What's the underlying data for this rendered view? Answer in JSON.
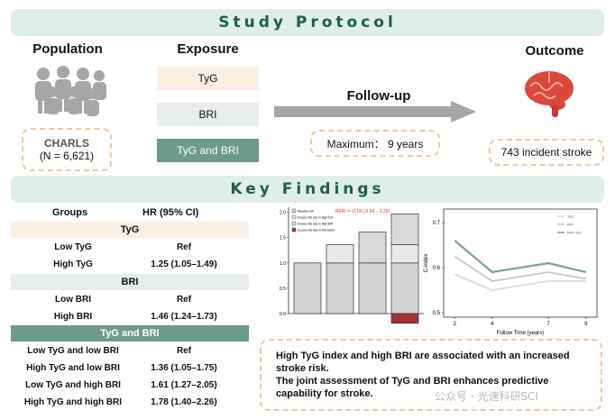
{
  "banners": {
    "protocol": "Study Protocol",
    "findings": "Key Findings"
  },
  "protocol": {
    "population": {
      "title": "Population",
      "name": "CHARLS",
      "n": "(N = 6,621)"
    },
    "exposure": {
      "title": "Exposure",
      "items": [
        "TyG",
        "BRI",
        "TyG and BRI"
      ]
    },
    "followup": {
      "title": "Follow-up",
      "maximum": "Maximum： 9 years"
    },
    "outcome": {
      "title": "Outcome",
      "result": "743 incident stroke"
    }
  },
  "table": {
    "headers": {
      "groups": "Groups",
      "hr": "HR (95% CI)"
    },
    "sections": [
      {
        "title": "TyG",
        "rows": [
          {
            "group": "Low TyG",
            "hr": "Ref"
          },
          {
            "group": "High TyG",
            "hr": "1.25 (1.05–1.49)"
          }
        ]
      },
      {
        "title": "BRI",
        "rows": [
          {
            "group": "Low BRI",
            "hr": "Ref"
          },
          {
            "group": "High BRI",
            "hr": "1.46 (1.24–1.73)"
          }
        ]
      },
      {
        "title": "TyG and BRI",
        "rows": [
          {
            "group": "Low TyG and low BRI",
            "hr": "Ref"
          },
          {
            "group": "High TyG and low BRI",
            "hr": "1.36 (1.05–1.75)"
          },
          {
            "group": "Low TyG and high BRI",
            "hr": "1.61 (1.27–2.05)"
          },
          {
            "group": "High TyG and high BRI",
            "hr": "1.78 (1.40–2.26)"
          }
        ]
      }
    ]
  },
  "chart_data": [
    {
      "type": "bar",
      "annotation": "RERI = -0.19 (-0.64 – 0.26)",
      "legend": [
        "Baseline risk",
        "Excess risk due to high TyG",
        "Excess risk due to high BRI",
        "Excess risk due to interaction"
      ],
      "yticks": [
        "0.0",
        "0.5",
        "1.0",
        "1.5",
        "2.0"
      ],
      "ylim": [
        0,
        2.1
      ],
      "bars": [
        {
          "baseline": 1.0,
          "tyg": 0,
          "bri": 0,
          "interaction": 0
        },
        {
          "baseline": 1.0,
          "tyg": 0.36,
          "bri": 0,
          "interaction": 0
        },
        {
          "baseline": 1.0,
          "tyg": 0,
          "bri": 0.61,
          "interaction": 0
        },
        {
          "baseline": 1.0,
          "tyg": 0.36,
          "bri": 0.61,
          "interaction": -0.19
        }
      ],
      "colors": {
        "baseline": "#d3d3d3",
        "tyg": "#e8e8e8",
        "bri": "#d9d9d9",
        "interaction": "#a83232"
      }
    },
    {
      "type": "line",
      "xlabel": "Follow Time (years)",
      "ylabel": "C-index",
      "x": [
        2,
        4,
        7,
        9
      ],
      "xticks": [
        "2",
        "4",
        "7",
        "9"
      ],
      "yticks": [
        "0.5",
        "0.6",
        "0.7"
      ],
      "ylim": [
        0.49,
        0.73
      ],
      "series": [
        {
          "name": "TyG",
          "values": [
            0.585,
            0.55,
            0.57,
            0.57
          ],
          "color": "#d9d9d9"
        },
        {
          "name": "BRI",
          "values": [
            0.625,
            0.57,
            0.59,
            0.575
          ],
          "color": "#c8c8c8"
        },
        {
          "name": "BRI+TyG",
          "values": [
            0.66,
            0.59,
            0.61,
            0.59
          ],
          "color": "#7fa393"
        }
      ],
      "legend_position": "top-right"
    }
  ],
  "findings": {
    "line1": "High TyG index and high BRI are associated with an increased stroke risk.",
    "line2": "The joint assessment of TyG and BRI enhances predictive capability for stroke."
  },
  "watermark": "公众号 · 光速科研SCI"
}
